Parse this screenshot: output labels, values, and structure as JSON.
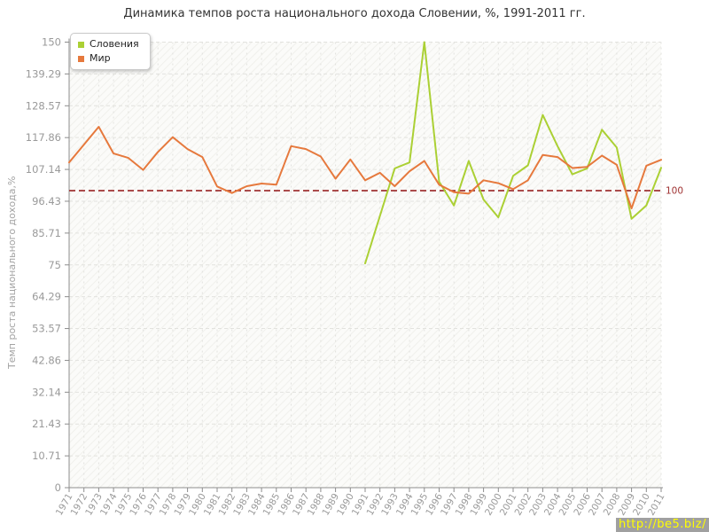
{
  "title": "Динамика темпов роста национального дохода Словении, %, 1991-2011 гг.",
  "y_axis_title": "Темп роста национального дохода,%",
  "legend": [
    {
      "label": "Словения",
      "color": "#abd034"
    },
    {
      "label": "Мир",
      "color": "#e6793d"
    }
  ],
  "ref_line": {
    "value": 100,
    "label": "100",
    "color": "#a03333"
  },
  "watermark": "http://be5.biz/",
  "colors": {
    "slovenia_line": "#abd034",
    "world_line": "#e6793d",
    "grid": "#e2e2de",
    "axis": "#8c8c8c",
    "tick_text": "#9a9a9a",
    "title_text": "#333333",
    "ref_line": "#a03333",
    "watermark_bg": "#a0a0a0",
    "watermark_text": "#ffff00"
  },
  "chart_data": {
    "type": "line",
    "x": [
      1971,
      1972,
      1973,
      1974,
      1975,
      1976,
      1977,
      1978,
      1979,
      1980,
      1981,
      1982,
      1983,
      1984,
      1985,
      1986,
      1987,
      1988,
      1989,
      1990,
      1991,
      1992,
      1993,
      1994,
      1995,
      1996,
      1997,
      1998,
      1999,
      2000,
      2001,
      2002,
      2003,
      2004,
      2005,
      2006,
      2007,
      2008,
      2009,
      2010,
      2011
    ],
    "y_ticks": [
      "0",
      "10.71",
      "21.43",
      "32.14",
      "42.86",
      "53.57",
      "64.29",
      "75",
      "85.71",
      "96.43",
      "107.14",
      "117.86",
      "128.57",
      "139.29",
      "150"
    ],
    "ylim": [
      0,
      150
    ],
    "grid": true,
    "legend_position": "top-left",
    "series": [
      {
        "name": "Словения",
        "color": "#abd034",
        "start_year": 1991,
        "values": [
          75.5,
          91.5,
          107.5,
          109.5,
          150,
          103,
          95,
          110,
          97,
          91,
          105,
          108.5,
          125.5,
          115,
          105.5,
          107.5,
          120.5,
          114.5,
          90.5,
          95,
          107.7
        ]
      },
      {
        "name": "Мир",
        "color": "#e6793d",
        "start_year": 1971,
        "values": [
          109.5,
          115.5,
          121.5,
          112.5,
          111,
          107,
          113,
          118,
          114,
          111.3,
          101.4,
          99.2,
          101.5,
          102.4,
          102,
          115,
          114,
          111.5,
          104,
          110.5,
          103.5,
          106,
          101.5,
          106.5,
          110,
          102,
          99.5,
          99,
          103.5,
          102.5,
          100.5,
          103.5,
          112,
          111.3,
          107.6,
          108,
          111.8,
          108.7,
          94,
          108.4,
          110.4
        ]
      }
    ]
  }
}
